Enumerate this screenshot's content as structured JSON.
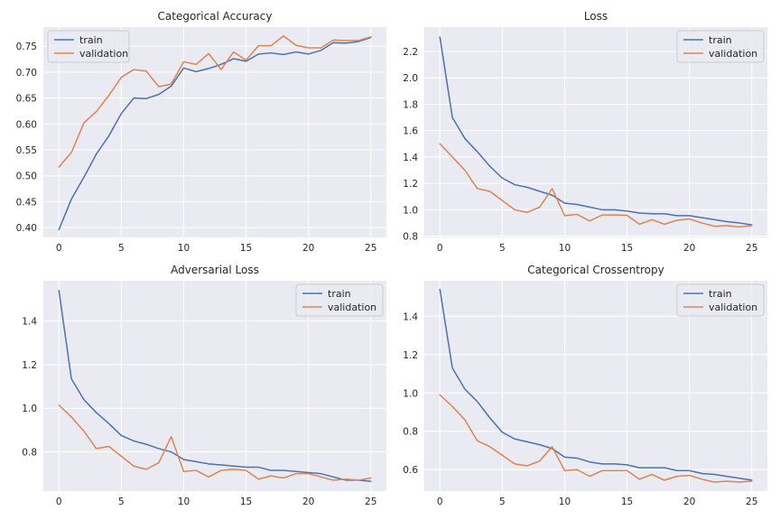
{
  "colors": {
    "train": "#4c72b0",
    "validation": "#dd8452",
    "panel_bg": "#eaeaf2",
    "grid": "#ffffff"
  },
  "chart_data": [
    {
      "type": "line",
      "title": "Categorical Accuracy",
      "xlabel": "",
      "ylabel": "",
      "xlim": [
        -1.25,
        26.25
      ],
      "ylim": [
        0.381,
        0.787
      ],
      "xticks": [
        0,
        5,
        10,
        15,
        20,
        25
      ],
      "yticks": [
        0.4,
        0.45,
        0.5,
        0.55,
        0.6,
        0.65,
        0.7,
        0.75
      ],
      "ytick_decimals": 2,
      "legend": "upper-left",
      "grid": true,
      "x": [
        0,
        1,
        2,
        3,
        4,
        5,
        6,
        7,
        8,
        9,
        10,
        11,
        12,
        13,
        14,
        15,
        16,
        17,
        18,
        19,
        20,
        21,
        22,
        23,
        24,
        25
      ],
      "series": [
        {
          "name": "train",
          "color": "#4c72b0",
          "values": [
            0.396,
            0.455,
            0.497,
            0.542,
            0.577,
            0.62,
            0.65,
            0.649,
            0.657,
            0.673,
            0.708,
            0.701,
            0.707,
            0.715,
            0.726,
            0.721,
            0.735,
            0.737,
            0.734,
            0.739,
            0.735,
            0.742,
            0.757,
            0.756,
            0.759,
            0.767
          ]
        },
        {
          "name": "validation",
          "color": "#dd8452",
          "values": [
            0.517,
            0.545,
            0.602,
            0.624,
            0.655,
            0.69,
            0.705,
            0.702,
            0.672,
            0.677,
            0.72,
            0.715,
            0.736,
            0.705,
            0.739,
            0.723,
            0.751,
            0.751,
            0.77,
            0.752,
            0.747,
            0.747,
            0.762,
            0.761,
            0.761,
            0.768
          ]
        }
      ]
    },
    {
      "type": "line",
      "title": "Loss",
      "xlabel": "",
      "ylabel": "",
      "xlim": [
        -1.25,
        26.25
      ],
      "ylim": [
        0.79,
        2.385
      ],
      "xticks": [
        0,
        5,
        10,
        15,
        20,
        25
      ],
      "yticks": [
        0.8,
        1.0,
        1.2,
        1.4,
        1.6,
        1.8,
        2.0,
        2.2
      ],
      "ytick_decimals": 1,
      "legend": "upper-right",
      "grid": true,
      "x": [
        0,
        1,
        2,
        3,
        4,
        5,
        6,
        7,
        8,
        9,
        10,
        11,
        12,
        13,
        14,
        15,
        16,
        17,
        18,
        19,
        20,
        21,
        22,
        23,
        24,
        25
      ],
      "series": [
        {
          "name": "train",
          "color": "#4c72b0",
          "values": [
            2.31,
            1.7,
            1.54,
            1.44,
            1.33,
            1.24,
            1.19,
            1.17,
            1.14,
            1.11,
            1.05,
            1.04,
            1.02,
            1.0,
            1.0,
            0.99,
            0.975,
            0.97,
            0.97,
            0.955,
            0.955,
            0.94,
            0.925,
            0.91,
            0.9,
            0.885
          ]
        },
        {
          "name": "validation",
          "color": "#dd8452",
          "values": [
            1.5,
            1.4,
            1.3,
            1.16,
            1.14,
            1.07,
            1.0,
            0.98,
            1.02,
            1.16,
            0.955,
            0.965,
            0.915,
            0.96,
            0.96,
            0.958,
            0.89,
            0.925,
            0.89,
            0.92,
            0.93,
            0.9,
            0.875,
            0.88,
            0.87,
            0.88
          ]
        }
      ]
    },
    {
      "type": "line",
      "title": "Adversarial Loss",
      "xlabel": "",
      "ylabel": "",
      "xlim": [
        -1.25,
        26.25
      ],
      "ylim": [
        0.62,
        1.585
      ],
      "xticks": [
        0,
        5,
        10,
        15,
        20,
        25
      ],
      "yticks": [
        0.8,
        1.0,
        1.2,
        1.4
      ],
      "ytick_decimals": 1,
      "legend": "upper-right",
      "grid": true,
      "x": [
        0,
        1,
        2,
        3,
        4,
        5,
        6,
        7,
        8,
        9,
        10,
        11,
        12,
        13,
        14,
        15,
        16,
        17,
        18,
        19,
        20,
        21,
        22,
        23,
        24,
        25
      ],
      "series": [
        {
          "name": "train",
          "color": "#4c72b0",
          "values": [
            1.54,
            1.135,
            1.04,
            0.98,
            0.93,
            0.875,
            0.85,
            0.835,
            0.815,
            0.8,
            0.765,
            0.755,
            0.745,
            0.74,
            0.735,
            0.73,
            0.73,
            0.715,
            0.715,
            0.71,
            0.705,
            0.7,
            0.685,
            0.67,
            0.67,
            0.665
          ]
        },
        {
          "name": "validation",
          "color": "#dd8452",
          "values": [
            1.015,
            0.96,
            0.895,
            0.815,
            0.825,
            0.78,
            0.735,
            0.72,
            0.75,
            0.87,
            0.71,
            0.715,
            0.685,
            0.715,
            0.72,
            0.715,
            0.675,
            0.69,
            0.68,
            0.7,
            0.7,
            0.685,
            0.67,
            0.675,
            0.67,
            0.68
          ]
        }
      ]
    },
    {
      "type": "line",
      "title": "Categorical Crossentropy",
      "xlabel": "",
      "ylabel": "",
      "xlim": [
        -1.25,
        26.25
      ],
      "ylim": [
        0.488,
        1.585
      ],
      "xticks": [
        0,
        5,
        10,
        15,
        20,
        25
      ],
      "yticks": [
        0.6,
        0.8,
        1.0,
        1.2,
        1.4
      ],
      "ytick_decimals": 1,
      "legend": "upper-right",
      "grid": true,
      "x": [
        0,
        1,
        2,
        3,
        4,
        5,
        6,
        7,
        8,
        9,
        10,
        11,
        12,
        13,
        14,
        15,
        16,
        17,
        18,
        19,
        20,
        21,
        22,
        23,
        24,
        25
      ],
      "series": [
        {
          "name": "train",
          "color": "#4c72b0",
          "values": [
            1.54,
            1.13,
            1.02,
            0.955,
            0.87,
            0.795,
            0.76,
            0.745,
            0.73,
            0.71,
            0.665,
            0.66,
            0.64,
            0.63,
            0.63,
            0.625,
            0.61,
            0.61,
            0.61,
            0.595,
            0.595,
            0.58,
            0.575,
            0.565,
            0.555,
            0.545
          ]
        },
        {
          "name": "validation",
          "color": "#dd8452",
          "values": [
            0.99,
            0.93,
            0.86,
            0.75,
            0.72,
            0.675,
            0.63,
            0.62,
            0.645,
            0.72,
            0.595,
            0.6,
            0.565,
            0.595,
            0.595,
            0.595,
            0.55,
            0.575,
            0.545,
            0.565,
            0.57,
            0.55,
            0.535,
            0.54,
            0.535,
            0.54
          ]
        }
      ]
    }
  ]
}
